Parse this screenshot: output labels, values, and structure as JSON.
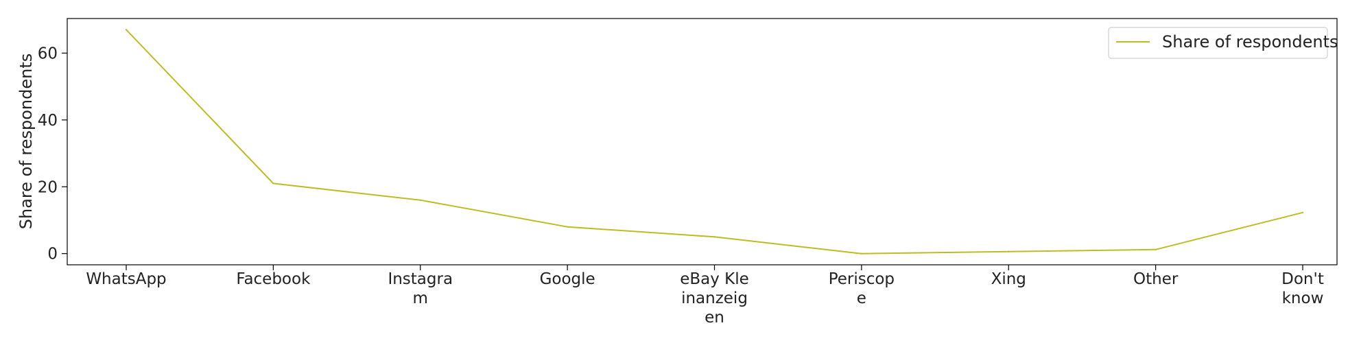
{
  "chart_data": {
    "type": "line",
    "categories": [
      "WhatsApp",
      "Facebook",
      "Instagram",
      "Google",
      "eBay Kleinanzeigen",
      "Periscope",
      "Xing",
      "Other",
      "Don't know"
    ],
    "category_display_lines": [
      [
        "WhatsApp"
      ],
      [
        "Facebook"
      ],
      [
        "Instagra",
        "m"
      ],
      [
        "Google"
      ],
      [
        "eBay Kle",
        "inanzeig",
        "en"
      ],
      [
        "Periscop",
        "e"
      ],
      [
        "Xing"
      ],
      [
        "Other"
      ],
      [
        "Don't",
        "know"
      ]
    ],
    "series": [
      {
        "name": "Share of respondents",
        "color": "#bcbd22",
        "values": [
          67,
          21,
          16,
          8,
          5,
          0,
          0.6,
          1.2,
          12.3
        ]
      }
    ],
    "xlabel": "",
    "ylabel": "Share of respondents",
    "ylim": [
      -3.35,
      70.35
    ],
    "yticks": [
      0,
      20,
      40,
      60
    ],
    "grid": false,
    "legend_position": "top-right"
  }
}
